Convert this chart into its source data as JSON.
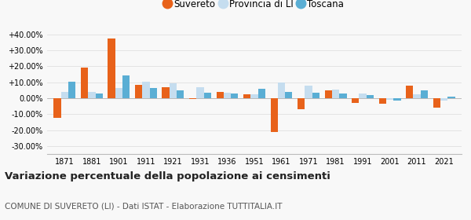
{
  "years": [
    1871,
    1881,
    1901,
    1911,
    1921,
    1931,
    1936,
    1951,
    1961,
    1971,
    1981,
    1991,
    2001,
    2011,
    2021
  ],
  "suvereto": [
    -12.5,
    19.0,
    37.5,
    8.5,
    7.0,
    -0.5,
    4.0,
    2.5,
    -21.0,
    -7.0,
    5.0,
    -3.0,
    -3.5,
    8.0,
    -6.0
  ],
  "provincia_li": [
    4.0,
    4.0,
    6.5,
    10.5,
    9.5,
    7.0,
    3.5,
    2.5,
    10.0,
    8.0,
    5.5,
    3.0,
    -1.0,
    2.5,
    -1.5
  ],
  "toscana": [
    10.5,
    3.0,
    14.5,
    6.5,
    5.0,
    3.5,
    3.0,
    6.0,
    4.0,
    3.5,
    3.0,
    2.0,
    -1.5,
    5.0,
    1.0
  ],
  "color_suvereto": "#e8621a",
  "color_provincia": "#c5ddef",
  "color_toscana": "#5aaed4",
  "title": "Variazione percentuale della popolazione ai censimenti",
  "subtitle": "COMUNE DI SUVERETO (LI) - Dati ISTAT - Elaborazione TUTTITALIA.IT",
  "ylim": [
    -35,
    45
  ],
  "yticks": [
    -30,
    -20,
    -10,
    0,
    10,
    20,
    30,
    40
  ],
  "ytick_labels": [
    "-30.00%",
    "-20.00%",
    "-10.00%",
    "0.00%",
    "+10.00%",
    "+20.00%",
    "+30.00%",
    "+40.00%"
  ],
  "background_color": "#f8f8f8",
  "grid_color": "#e0e0e0"
}
